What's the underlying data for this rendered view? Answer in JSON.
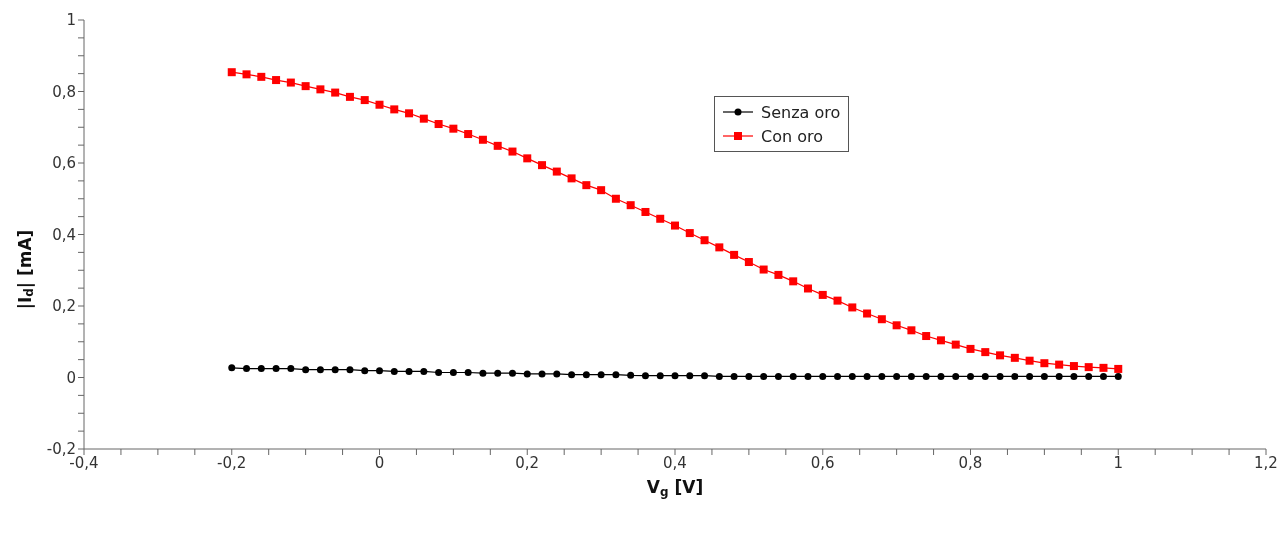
{
  "chart_data": {
    "type": "line",
    "xlabel": "V$_{g}$ [V]",
    "ylabel": "|I$_{d}$| [mA]",
    "x": [
      -0.2,
      -0.18,
      -0.16,
      -0.14,
      -0.12,
      -0.1,
      -0.08,
      -0.06,
      -0.04,
      -0.02,
      0,
      0.02,
      0.04,
      0.06,
      0.08,
      0.1,
      0.12,
      0.14,
      0.16,
      0.18,
      0.2,
      0.22,
      0.24,
      0.26,
      0.28,
      0.3,
      0.32,
      0.34,
      0.36,
      0.38,
      0.4,
      0.42,
      0.44,
      0.46,
      0.48,
      0.5,
      0.52,
      0.54,
      0.56,
      0.58,
      0.6,
      0.62,
      0.64,
      0.66,
      0.68,
      0.7,
      0.72,
      0.74,
      0.76,
      0.78,
      0.8,
      0.82,
      0.84,
      0.86,
      0.88,
      0.9,
      0.92,
      0.94,
      0.96,
      0.98,
      1
    ],
    "series": [
      {
        "name": "Senza oro",
        "color": "#000000",
        "marker": "circle",
        "values": [
          0.027,
          0.025,
          0.025,
          0.025,
          0.025,
          0.022,
          0.022,
          0.022,
          0.022,
          0.019,
          0.019,
          0.017,
          0.017,
          0.017,
          0.014,
          0.014,
          0.014,
          0.012,
          0.012,
          0.012,
          0.01,
          0.01,
          0.01,
          0.008,
          0.008,
          0.008,
          0.008,
          0.006,
          0.005,
          0.005,
          0.005,
          0.005,
          0.005,
          0.003,
          0.003,
          0.003,
          0.003,
          0.003,
          0.003,
          0.003,
          0.003,
          0.003,
          0.003,
          0.003,
          0.003,
          0.003,
          0.003,
          0.003,
          0.003,
          0.003,
          0.003,
          0.003,
          0.003,
          0.003,
          0.003,
          0.003,
          0.003,
          0.003,
          0.003,
          0.003,
          0.003
        ]
      },
      {
        "name": "Con oro",
        "color": "#ff0000",
        "marker": "square",
        "values": [
          0.854,
          0.848,
          0.841,
          0.832,
          0.825,
          0.815,
          0.806,
          0.797,
          0.785,
          0.776,
          0.763,
          0.75,
          0.739,
          0.724,
          0.709,
          0.696,
          0.681,
          0.665,
          0.648,
          0.632,
          0.613,
          0.594,
          0.576,
          0.557,
          0.538,
          0.524,
          0.5,
          0.482,
          0.463,
          0.444,
          0.425,
          0.404,
          0.384,
          0.364,
          0.343,
          0.323,
          0.302,
          0.287,
          0.269,
          0.249,
          0.231,
          0.215,
          0.196,
          0.179,
          0.163,
          0.146,
          0.132,
          0.116,
          0.104,
          0.092,
          0.08,
          0.071,
          0.062,
          0.055,
          0.047,
          0.04,
          0.036,
          0.032,
          0.029,
          0.027,
          0.024
        ]
      }
    ],
    "xlim": [
      -0.4,
      1.2
    ],
    "xticks": [
      {
        "value": -0.4,
        "label": "-0,4"
      },
      {
        "value": -0.35,
        "label": null
      },
      {
        "value": -0.3,
        "label": null
      },
      {
        "value": -0.25,
        "label": null
      },
      {
        "value": -0.2,
        "label": "-0,2"
      },
      {
        "value": -0.15,
        "label": null
      },
      {
        "value": -0.1,
        "label": null
      },
      {
        "value": -0.05,
        "label": null
      },
      0,
      {
        "value": 0.05,
        "label": null
      },
      {
        "value": 0.1,
        "label": null
      },
      {
        "value": 0.15,
        "label": null
      },
      {
        "value": 0.2,
        "label": "0,2"
      },
      {
        "value": 0.25,
        "label": null
      },
      {
        "value": 0.3,
        "label": null
      },
      {
        "value": 0.35,
        "label": null
      },
      {
        "value": 0.4,
        "label": "0,4"
      },
      {
        "value": 0.45,
        "label": null
      },
      {
        "value": 0.5,
        "label": null
      },
      {
        "value": 0.55,
        "label": null
      },
      {
        "value": 0.6,
        "label": "0,6"
      },
      {
        "value": 0.65,
        "label": null
      },
      {
        "value": 0.7,
        "label": null
      },
      {
        "value": 0.75,
        "label": null
      },
      {
        "value": 0.8,
        "label": "0,8"
      },
      {
        "value": 0.85,
        "label": null
      },
      {
        "value": 0.9,
        "label": null
      },
      {
        "value": 0.95,
        "label": null
      },
      1,
      {
        "value": 1.05,
        "label": null
      },
      {
        "value": 1.1,
        "label": null
      },
      {
        "value": 1.15,
        "label": null
      },
      {
        "value": 1.2,
        "label": "1,2"
      }
    ],
    "ylim": [
      -0.2,
      1
    ],
    "yticks": [
      {
        "value": -0.2,
        "label": "-0,2"
      },
      {
        "value": -0.15,
        "label": null
      },
      {
        "value": -0.1,
        "label": null
      },
      {
        "value": -0.05,
        "label": null
      },
      0,
      {
        "value": 0.05,
        "label": null
      },
      {
        "value": 0.1,
        "label": null
      },
      {
        "value": 0.15,
        "label": null
      },
      {
        "value": 0.2,
        "label": "0,2"
      },
      {
        "value": 0.25,
        "label": null
      },
      {
        "value": 0.3,
        "label": null
      },
      {
        "value": 0.35,
        "label": null
      },
      {
        "value": 0.4,
        "label": "0,4"
      },
      {
        "value": 0.45,
        "label": null
      },
      {
        "value": 0.5,
        "label": null
      },
      {
        "value": 0.55,
        "label": null
      },
      {
        "value": 0.6,
        "label": "0,6"
      },
      {
        "value": 0.65,
        "label": null
      },
      {
        "value": 0.7,
        "label": null
      },
      {
        "value": 0.75,
        "label": null
      },
      {
        "value": 0.8,
        "label": "0,8"
      },
      {
        "value": 0.85,
        "label": null
      },
      {
        "value": 0.9,
        "label": null
      },
      {
        "value": 0.95,
        "label": null
      },
      1
    ],
    "grid": false,
    "legend": "top right",
    "line_style": "solid"
  }
}
